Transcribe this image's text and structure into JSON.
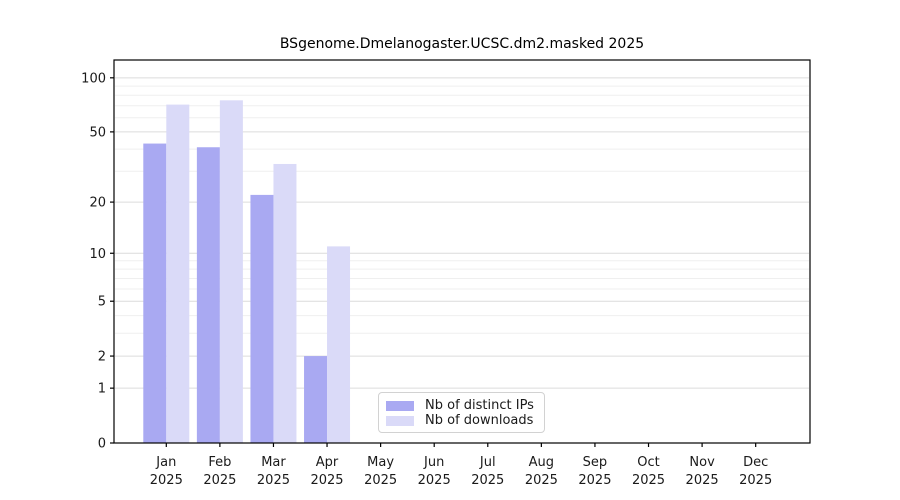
{
  "chart_data": {
    "type": "bar",
    "title": "BSgenome.Dmelanogaster.UCSC.dm2.masked 2025",
    "categories": [
      "Jan",
      "Feb",
      "Mar",
      "Apr",
      "May",
      "Jun",
      "Jul",
      "Aug",
      "Sep",
      "Oct",
      "Nov",
      "Dec"
    ],
    "x_tick_second_line": "2025",
    "series": [
      {
        "name": "Nb of distinct IPs",
        "color": "#a9a9f2",
        "values": [
          43,
          41,
          22,
          2,
          0,
          0,
          0,
          0,
          0,
          0,
          0,
          0
        ]
      },
      {
        "name": "Nb of downloads",
        "color": "#dadaf8",
        "values": [
          71,
          75,
          33,
          11,
          0,
          0,
          0,
          0,
          0,
          0,
          0,
          0
        ]
      }
    ],
    "y_axis": {
      "scale": "log10(1+v)",
      "ticks": [
        0,
        1,
        2,
        5,
        10,
        20,
        50,
        100
      ],
      "tick_labels": [
        "0",
        "1",
        "2",
        "5",
        "10",
        "20",
        "50",
        "100"
      ],
      "minor_gridlines": [
        3,
        4,
        6,
        7,
        8,
        9,
        30,
        40,
        60,
        70,
        80,
        90
      ],
      "ylim_top_value": 126
    },
    "grid": true,
    "legend_position": "bottom-center",
    "colors": {
      "grid_major": "#dcdcdc",
      "grid_minor": "#efefef",
      "axis": "#000000",
      "text": "#1a1a1a"
    }
  }
}
